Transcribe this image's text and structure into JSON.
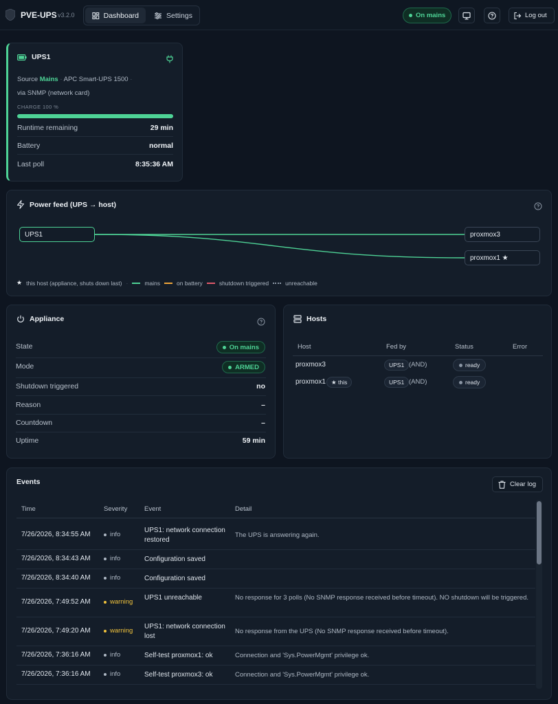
{
  "header": {
    "brand": "PVE-UPS",
    "version": "v3.2.0",
    "nav": [
      {
        "label": "Dashboard"
      },
      {
        "label": "Settings"
      }
    ],
    "status": "On mains",
    "logout": "Log out"
  },
  "ups": {
    "name": "UPS1",
    "source_label": "Source",
    "source_value": "Mains",
    "model": "APC Smart-UPS 1500",
    "via": "via SNMP (network card)",
    "charge_label": "CHARGE 100 %",
    "charge": 100,
    "rows": [
      {
        "label": "Runtime remaining",
        "value": "29 min"
      },
      {
        "label": "Battery",
        "value": "normal"
      },
      {
        "label": "Last poll",
        "value": "8:35:36 AM"
      }
    ]
  },
  "feed": {
    "title": "Power feed (UPS → host)",
    "ups": "UPS1",
    "hosts": [
      "proxmox3",
      "proxmox1 ★"
    ],
    "legend": {
      "this_host": "this host (appliance, shuts down last)",
      "mains": "mains",
      "battery": "on battery",
      "shutdown": "shutdown triggered",
      "unreachable": "unreachable"
    },
    "colors": {
      "mains": "#4ed396",
      "battery": "#f0a73a",
      "shutdown": "#e0596a",
      "unreachable": "#8a95a3"
    }
  },
  "appliance": {
    "title": "Appliance",
    "state_label": "State",
    "state_value": "On mains",
    "mode_label": "Mode",
    "mode_value": "ARMED",
    "rows": [
      {
        "label": "Shutdown triggered",
        "value": "no"
      },
      {
        "label": "Reason",
        "value": "–"
      },
      {
        "label": "Countdown",
        "value": "–"
      },
      {
        "label": "Uptime",
        "value": "59 min"
      }
    ]
  },
  "hosts": {
    "title": "Hosts",
    "columns": [
      "Host",
      "Fed by",
      "Status",
      "Error"
    ],
    "rows": [
      {
        "host": "proxmox3",
        "this": "",
        "fed": "UPS1",
        "mode": "(AND)",
        "status": "ready"
      },
      {
        "host": "proxmox1",
        "this": "★ this",
        "fed": "UPS1",
        "mode": "(AND)",
        "status": "ready"
      }
    ]
  },
  "events": {
    "title": "Events",
    "clear": "Clear log",
    "columns": [
      "Time",
      "Severity",
      "Event",
      "Detail"
    ],
    "rows": [
      {
        "time": "7/26/2026, 8:34:55 AM",
        "severity": "info",
        "event": "UPS1: network connection restored",
        "detail": "The UPS is answering again."
      },
      {
        "time": "7/26/2026, 8:34:43 AM",
        "severity": "info",
        "event": "Configuration saved",
        "detail": ""
      },
      {
        "time": "7/26/2026, 8:34:40 AM",
        "severity": "info",
        "event": "Configuration saved",
        "detail": ""
      },
      {
        "time": "7/26/2026, 7:49:52 AM",
        "severity": "warning",
        "event": "UPS1 unreachable",
        "detail": "No response for 3 polls (No SNMP response received before timeout). NO shutdown will be triggered."
      },
      {
        "time": "7/26/2026, 7:49:20 AM",
        "severity": "warning",
        "event": "UPS1: network connection lost",
        "detail": "No response from the UPS (No SNMP response received before timeout)."
      },
      {
        "time": "7/26/2026, 7:36:16 AM",
        "severity": "info",
        "event": "Self-test proxmox1: ok",
        "detail": "Connection and 'Sys.PowerMgmt' privilege ok."
      },
      {
        "time": "7/26/2026, 7:36:16 AM",
        "severity": "info",
        "event": "Self-test proxmox3: ok",
        "detail": "Connection and 'Sys.PowerMgmt' privilege ok."
      }
    ]
  }
}
